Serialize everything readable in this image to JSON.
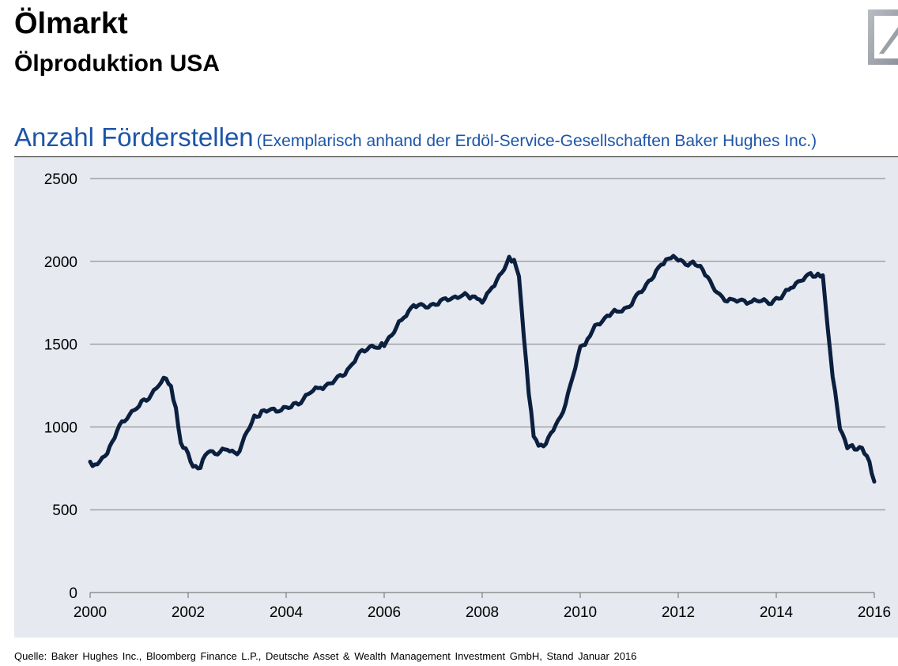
{
  "header": {
    "title": "Ölmarkt",
    "subtitle": "Ölproduktion USA",
    "logo_icon": "deutsche-bank-logo-icon"
  },
  "chart_heading": {
    "main": "Anzahl Förderstellen",
    "note": "(Exemplarisch anhand der Erdöl-Service-Gesellschaften Baker Hughes Inc.)"
  },
  "source": "Quelle: Baker Hughes Inc., Bloomberg Finance L.P., Deutsche Asset & Wealth Management Investment GmbH, Stand Januar 2016",
  "colors": {
    "heading": "#1d55a8",
    "plot_background": "#e6e9ef",
    "line": "#0b1f3f",
    "gridline": "#7f7f7f"
  },
  "chart_data": {
    "type": "line",
    "title": "",
    "xlabel": "",
    "ylabel": "",
    "xlim": [
      2000,
      2016
    ],
    "ylim": [
      0,
      2500
    ],
    "y_ticks": [
      "0",
      "500",
      "1000",
      "1500",
      "2000",
      "2500"
    ],
    "x_ticks": [
      "2000",
      "2002",
      "2004",
      "2006",
      "2008",
      "2010",
      "2012",
      "2014",
      "2016"
    ],
    "grid": "horizontal",
    "legend": "none",
    "series": [
      {
        "x": [
          2000.0,
          2000.1,
          2000.25,
          2000.4,
          2000.6,
          2000.8,
          2001.0,
          2001.2,
          2001.4,
          2001.55,
          2001.65,
          2001.75,
          2001.85,
          2001.95,
          2002.1,
          2002.25,
          2002.4,
          2002.6,
          2002.8,
          2003.0,
          2003.2,
          2003.35,
          2003.5,
          2003.7,
          2003.9,
          2004.1,
          2004.3,
          2004.5,
          2004.7,
          2004.9,
          2005.1,
          2005.3,
          2005.5,
          2005.7,
          2005.9,
          2006.0,
          2006.2,
          2006.4,
          2006.6,
          2006.8,
          2007.0,
          2007.2,
          2007.4,
          2007.6,
          2007.75,
          2007.9,
          2008.0,
          2008.2,
          2008.4,
          2008.55,
          2008.65,
          2008.75,
          2008.85,
          2008.95,
          2009.05,
          2009.15,
          2009.25,
          2009.4,
          2009.6,
          2009.8,
          2010.0,
          2010.1,
          2010.25,
          2010.45,
          2010.6,
          2010.8,
          2011.0,
          2011.2,
          2011.4,
          2011.6,
          2011.75,
          2011.85,
          2012.0,
          2012.2,
          2012.35,
          2012.5,
          2012.7,
          2012.9,
          2013.1,
          2013.3,
          2013.5,
          2013.7,
          2013.9,
          2014.1,
          2014.3,
          2014.5,
          2014.7,
          2014.85,
          2014.95,
          2015.05,
          2015.15,
          2015.3,
          2015.45,
          2015.6,
          2015.75,
          2015.9,
          2016.0
        ],
        "y": [
          790,
          770,
          800,
          880,
          1000,
          1080,
          1130,
          1180,
          1260,
          1290,
          1250,
          1100,
          900,
          860,
          760,
          760,
          850,
          850,
          860,
          840,
          960,
          1060,
          1090,
          1100,
          1110,
          1120,
          1160,
          1210,
          1240,
          1260,
          1300,
          1360,
          1440,
          1490,
          1480,
          1500,
          1580,
          1660,
          1740,
          1720,
          1740,
          1760,
          1780,
          1800,
          1780,
          1790,
          1750,
          1850,
          1920,
          2020,
          2000,
          1900,
          1550,
          1200,
          960,
          890,
          890,
          960,
          1050,
          1250,
          1470,
          1500,
          1580,
          1650,
          1680,
          1700,
          1730,
          1800,
          1880,
          1950,
          2010,
          2020,
          2010,
          1990,
          1980,
          1960,
          1840,
          1780,
          1760,
          1760,
          1760,
          1760,
          1760,
          1780,
          1850,
          1880,
          1920,
          1920,
          1900,
          1600,
          1300,
          1000,
          880,
          870,
          880,
          780,
          670
        ]
      }
    ]
  }
}
